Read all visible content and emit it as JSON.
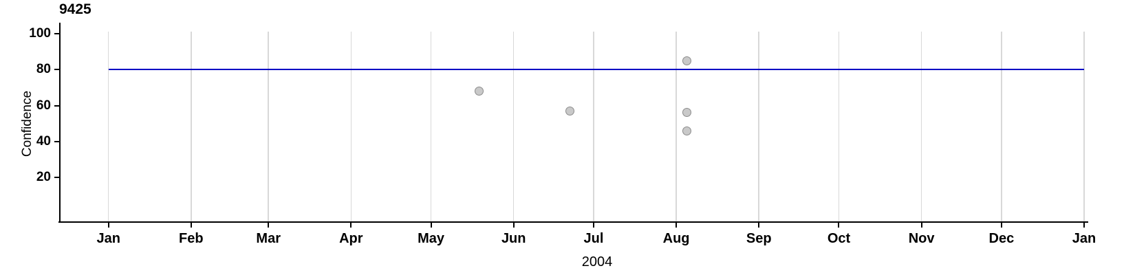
{
  "chart_data": {
    "type": "scatter",
    "title": "9425",
    "ylabel": "Confidence",
    "xlabel": "2004",
    "ylim": [
      -5,
      106
    ],
    "y_ticks": [
      100,
      80,
      60,
      40,
      20
    ],
    "x_ticks": [
      {
        "label": "Jan",
        "day": 0
      },
      {
        "label": "Feb",
        "day": 31
      },
      {
        "label": "Mar",
        "day": 60
      },
      {
        "label": "Apr",
        "day": 91
      },
      {
        "label": "May",
        "day": 121
      },
      {
        "label": "Jun",
        "day": 152
      },
      {
        "label": "Jul",
        "day": 182
      },
      {
        "label": "Aug",
        "day": 213
      },
      {
        "label": "Sep",
        "day": 244
      },
      {
        "label": "Oct",
        "day": 274
      },
      {
        "label": "Nov",
        "day": 305
      },
      {
        "label": "Dec",
        "day": 335
      },
      {
        "label": "Jan",
        "day": 366
      }
    ],
    "reference_line": {
      "value": 80,
      "color": "#0000c4"
    },
    "points": [
      {
        "date": "2004-05-19",
        "day": 139,
        "value": 68
      },
      {
        "date": "2004-06-22",
        "day": 173,
        "value": 57
      },
      {
        "date": "2004-08-05",
        "day": 217,
        "value": 85
      },
      {
        "date": "2004-08-05",
        "day": 217,
        "value": 56
      },
      {
        "date": "2004-08-05",
        "day": 217,
        "value": 46
      }
    ],
    "grid": {
      "color": "#d8d8d8",
      "orientation": "vertical"
    },
    "legend": "none",
    "colors": {
      "point_fill": "#c9c9c9",
      "point_stroke": "#8c8c8c",
      "axis": "#000000",
      "reference_line": "#0000c4",
      "gridline": "#d8d8d8"
    }
  }
}
